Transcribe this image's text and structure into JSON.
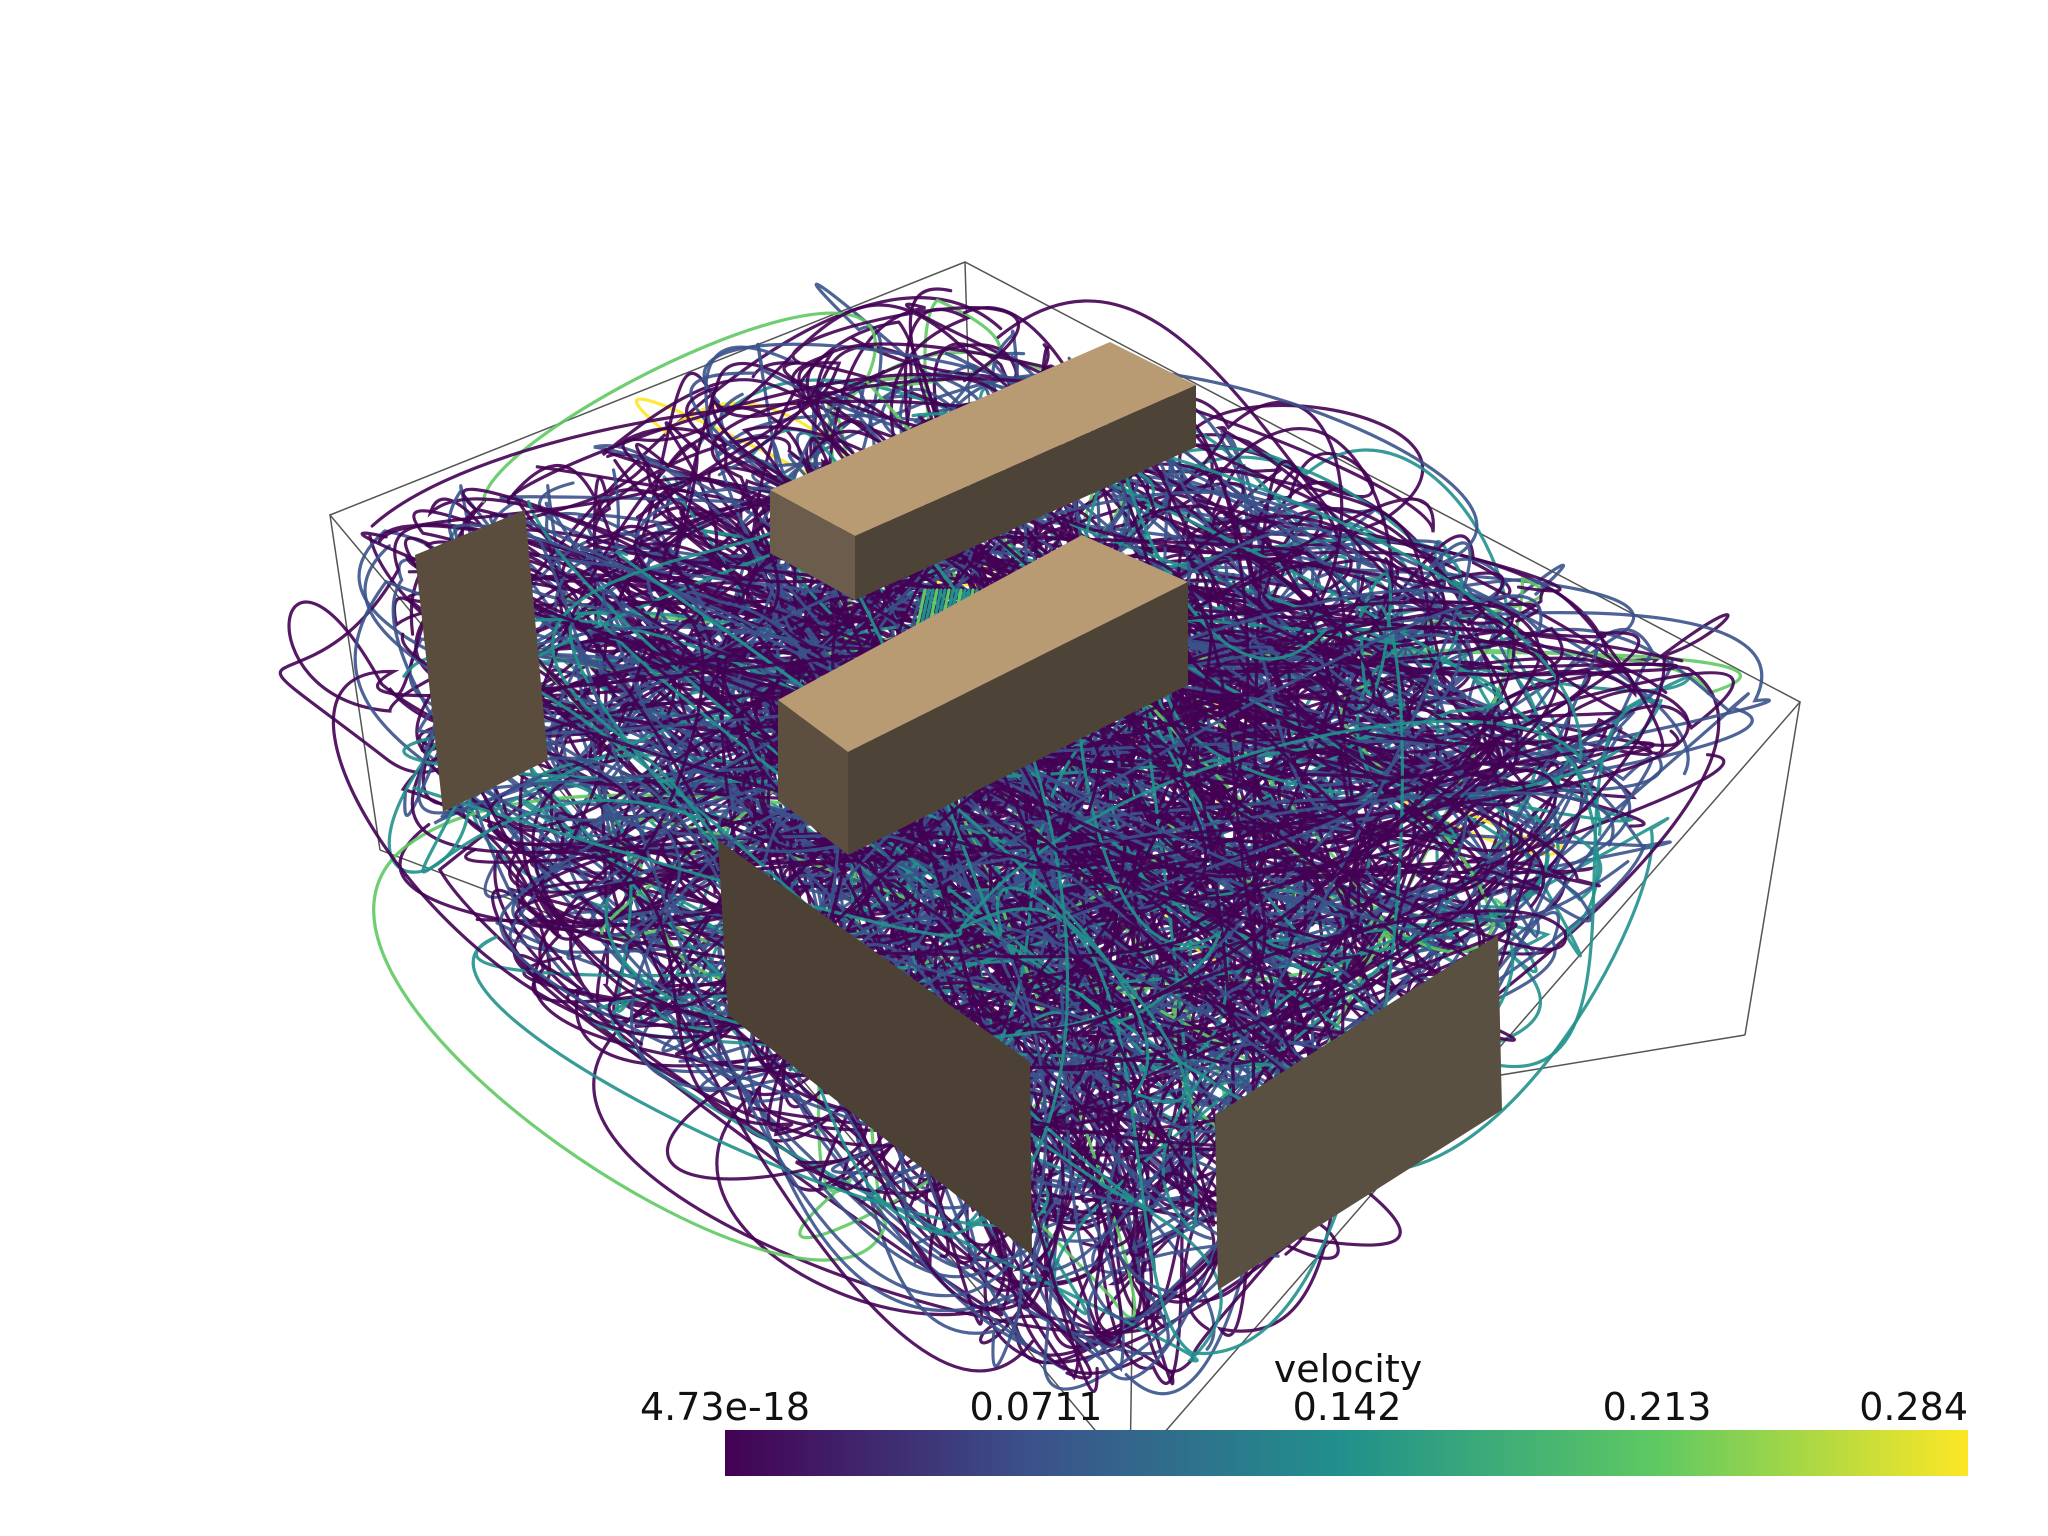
{
  "scalar_bar": {
    "title": "velocity",
    "ticks": [
      "4.73e-18",
      "0.0711",
      "0.142",
      "0.213",
      "0.284"
    ],
    "range": [
      4.73e-18,
      0.284
    ],
    "colormap": "viridis",
    "stops": [
      "#440154",
      "#3b528b",
      "#21918c",
      "#5ec962",
      "#fde725"
    ]
  },
  "scene": {
    "background": "#ffffff",
    "outline_color": "#555555",
    "obstacle_top_color": "#b89b72",
    "obstacle_side_color": "#4e4337"
  }
}
